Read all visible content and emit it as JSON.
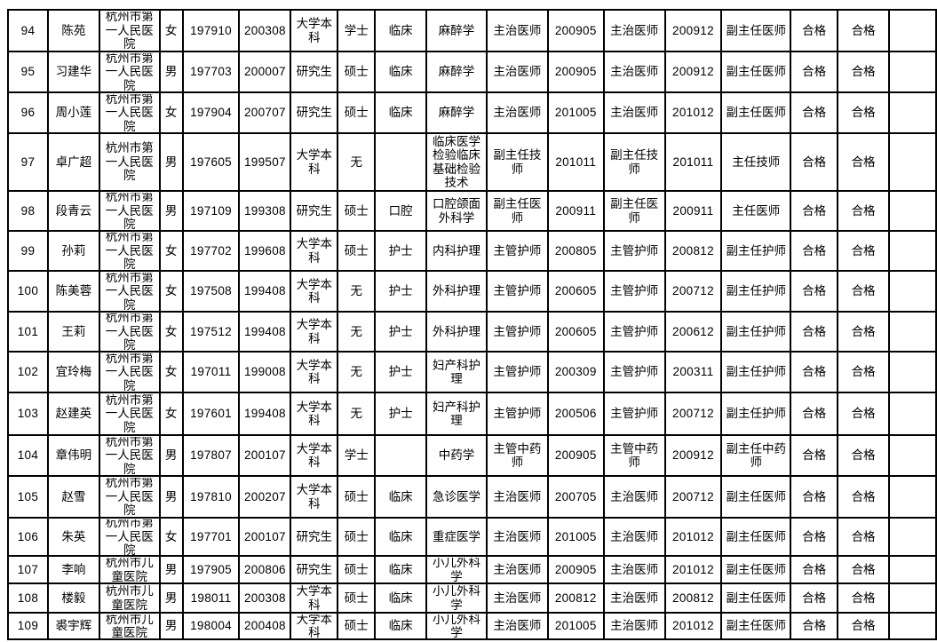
{
  "page": {
    "background_color": "#ffffff",
    "grid_line_color": "#000000",
    "text_color": "#000000",
    "pass_label": "合格"
  },
  "table": {
    "rows": [
      {
        "no": "94",
        "name": "陈苑",
        "unit": "杭州市第一人民医院",
        "gender": "女",
        "birth_date": "197910",
        "start_date": "200308",
        "education": "大学本科",
        "degree": "学士",
        "category": "临床",
        "specialty": "麻醉学",
        "title_current": "主治医师",
        "title_current_date": "200905",
        "title_qualified": "主治医师",
        "title_qualified_date": "200912",
        "title_next": "副主任医师",
        "exam_result": "合格",
        "assess_result": "合格",
        "blank": ""
      },
      {
        "no": "95",
        "name": "习建华",
        "unit": "杭州市第一人民医院",
        "gender": "男",
        "birth_date": "197703",
        "start_date": "200007",
        "education": "研究生",
        "degree": "硕士",
        "category": "临床",
        "specialty": "麻醉学",
        "title_current": "主治医师",
        "title_current_date": "200905",
        "title_qualified": "主治医师",
        "title_qualified_date": "200912",
        "title_next": "副主任医师",
        "exam_result": "合格",
        "assess_result": "合格",
        "blank": ""
      },
      {
        "no": "96",
        "name": "周小莲",
        "unit": "杭州市第一人民医院",
        "gender": "女",
        "birth_date": "197904",
        "start_date": "200707",
        "education": "研究生",
        "degree": "硕士",
        "category": "临床",
        "specialty": "麻醉学",
        "title_current": "主治医师",
        "title_current_date": "201005",
        "title_qualified": "主治医师",
        "title_qualified_date": "201012",
        "title_next": "副主任医师",
        "exam_result": "合格",
        "assess_result": "合格",
        "blank": ""
      },
      {
        "no": "97",
        "name": "卓广超",
        "unit": "杭州市第一人民医院",
        "gender": "男",
        "birth_date": "197605",
        "start_date": "199507",
        "education": "大学本科",
        "degree": "无",
        "category": "",
        "specialty": "临床医学检验临床基础检验技术",
        "title_current": "副主任技师",
        "title_current_date": "201011",
        "title_qualified": "副主任技师",
        "title_qualified_date": "201011",
        "title_next": "主任技师",
        "exam_result": "合格",
        "assess_result": "合格",
        "blank": ""
      },
      {
        "no": "98",
        "name": "段青云",
        "unit": "杭州市第一人民医院",
        "gender": "男",
        "birth_date": "197109",
        "start_date": "199308",
        "education": "研究生",
        "degree": "硕士",
        "category": "口腔",
        "specialty": "口腔颌面外科学",
        "title_current": "副主任医师",
        "title_current_date": "200911",
        "title_qualified": "副主任医师",
        "title_qualified_date": "200911",
        "title_next": "主任医师",
        "exam_result": "合格",
        "assess_result": "合格",
        "blank": ""
      },
      {
        "no": "99",
        "name": "孙莉",
        "unit": "杭州市第一人民医院",
        "gender": "女",
        "birth_date": "197702",
        "start_date": "199608",
        "education": "大学本科",
        "degree": "硕士",
        "category": "护士",
        "specialty": "内科护理",
        "title_current": "主管护师",
        "title_current_date": "200805",
        "title_qualified": "主管护师",
        "title_qualified_date": "200812",
        "title_next": "副主任护师",
        "exam_result": "合格",
        "assess_result": "合格",
        "blank": ""
      },
      {
        "no": "100",
        "name": "陈美蓉",
        "unit": "杭州市第一人民医院",
        "gender": "女",
        "birth_date": "197508",
        "start_date": "199408",
        "education": "大学本科",
        "degree": "无",
        "category": "护士",
        "specialty": "外科护理",
        "title_current": "主管护师",
        "title_current_date": "200605",
        "title_qualified": "主管护师",
        "title_qualified_date": "200712",
        "title_next": "副主任护师",
        "exam_result": "合格",
        "assess_result": "合格",
        "blank": ""
      },
      {
        "no": "101",
        "name": "王莉",
        "unit": "杭州市第一人民医院",
        "gender": "女",
        "birth_date": "197512",
        "start_date": "199408",
        "education": "大学本科",
        "degree": "无",
        "category": "护士",
        "specialty": "外科护理",
        "title_current": "主管护师",
        "title_current_date": "200605",
        "title_qualified": "主管护师",
        "title_qualified_date": "200612",
        "title_next": "副主任护师",
        "exam_result": "合格",
        "assess_result": "合格",
        "blank": ""
      },
      {
        "no": "102",
        "name": "宜玲梅",
        "unit": "杭州市第一人民医院",
        "gender": "女",
        "birth_date": "197011",
        "start_date": "199008",
        "education": "大学本科",
        "degree": "无",
        "category": "护士",
        "specialty": "妇产科护理",
        "title_current": "主管护师",
        "title_current_date": "200309",
        "title_qualified": "主管护师",
        "title_qualified_date": "200311",
        "title_next": "副主任护师",
        "exam_result": "合格",
        "assess_result": "合格",
        "blank": ""
      },
      {
        "no": "103",
        "name": "赵建英",
        "unit": "杭州市第一人民医院",
        "gender": "女",
        "birth_date": "197601",
        "start_date": "199408",
        "education": "大学本科",
        "degree": "无",
        "category": "护士",
        "specialty": "妇产科护理",
        "title_current": "主管护师",
        "title_current_date": "200506",
        "title_qualified": "主管护师",
        "title_qualified_date": "200712",
        "title_next": "副主任护师",
        "exam_result": "合格",
        "assess_result": "合格",
        "blank": ""
      },
      {
        "no": "104",
        "name": "章伟明",
        "unit": "杭州市第一人民医院",
        "gender": "男",
        "birth_date": "197807",
        "start_date": "200107",
        "education": "大学本科",
        "degree": "学士",
        "category": "",
        "specialty": "中药学",
        "title_current": "主管中药师",
        "title_current_date": "200905",
        "title_qualified": "主管中药师",
        "title_qualified_date": "200912",
        "title_next": "副主任中药师",
        "exam_result": "合格",
        "assess_result": "合格",
        "blank": ""
      },
      {
        "no": "105",
        "name": "赵雪",
        "unit": "杭州市第一人民医院",
        "gender": "男",
        "birth_date": "197810",
        "start_date": "200207",
        "education": "大学本科",
        "degree": "硕士",
        "category": "临床",
        "specialty": "急诊医学",
        "title_current": "主治医师",
        "title_current_date": "200705",
        "title_qualified": "主治医师",
        "title_qualified_date": "200712",
        "title_next": "副主任医师",
        "exam_result": "合格",
        "assess_result": "合格",
        "blank": ""
      },
      {
        "no": "106",
        "name": "朱英",
        "unit": "杭州市第一人民医院",
        "gender": "女",
        "birth_date": "197701",
        "start_date": "200107",
        "education": "研究生",
        "degree": "硕士",
        "category": "临床",
        "specialty": "重症医学",
        "title_current": "主治医师",
        "title_current_date": "201005",
        "title_qualified": "主治医师",
        "title_qualified_date": "201012",
        "title_next": "副主任医师",
        "exam_result": "合格",
        "assess_result": "合格",
        "blank": ""
      },
      {
        "no": "107",
        "name": "李响",
        "unit": "杭州市儿童医院",
        "gender": "男",
        "birth_date": "197905",
        "start_date": "200806",
        "education": "研究生",
        "degree": "硕士",
        "category": "临床",
        "specialty": "小儿外科学",
        "title_current": "主治医师",
        "title_current_date": "200905",
        "title_qualified": "主治医师",
        "title_qualified_date": "201012",
        "title_next": "副主任医师",
        "exam_result": "合格",
        "assess_result": "合格",
        "blank": ""
      },
      {
        "no": "108",
        "name": "楼毅",
        "unit": "杭州市儿童医院",
        "gender": "男",
        "birth_date": "198011",
        "start_date": "200308",
        "education": "大学本科",
        "degree": "硕士",
        "category": "临床",
        "specialty": "小儿外科学",
        "title_current": "主治医师",
        "title_current_date": "200812",
        "title_qualified": "主治医师",
        "title_qualified_date": "200812",
        "title_next": "副主任医师",
        "exam_result": "合格",
        "assess_result": "合格",
        "blank": ""
      },
      {
        "no": "109",
        "name": "裘宇辉",
        "unit": "杭州市儿童医院",
        "gender": "男",
        "birth_date": "198004",
        "start_date": "200408",
        "education": "大学本科",
        "degree": "硕士",
        "category": "临床",
        "specialty": "小儿外科学",
        "title_current": "主治医师",
        "title_current_date": "201005",
        "title_qualified": "主治医师",
        "title_qualified_date": "201012",
        "title_next": "副主任医师",
        "exam_result": "合格",
        "assess_result": "合格",
        "blank": ""
      }
    ]
  }
}
